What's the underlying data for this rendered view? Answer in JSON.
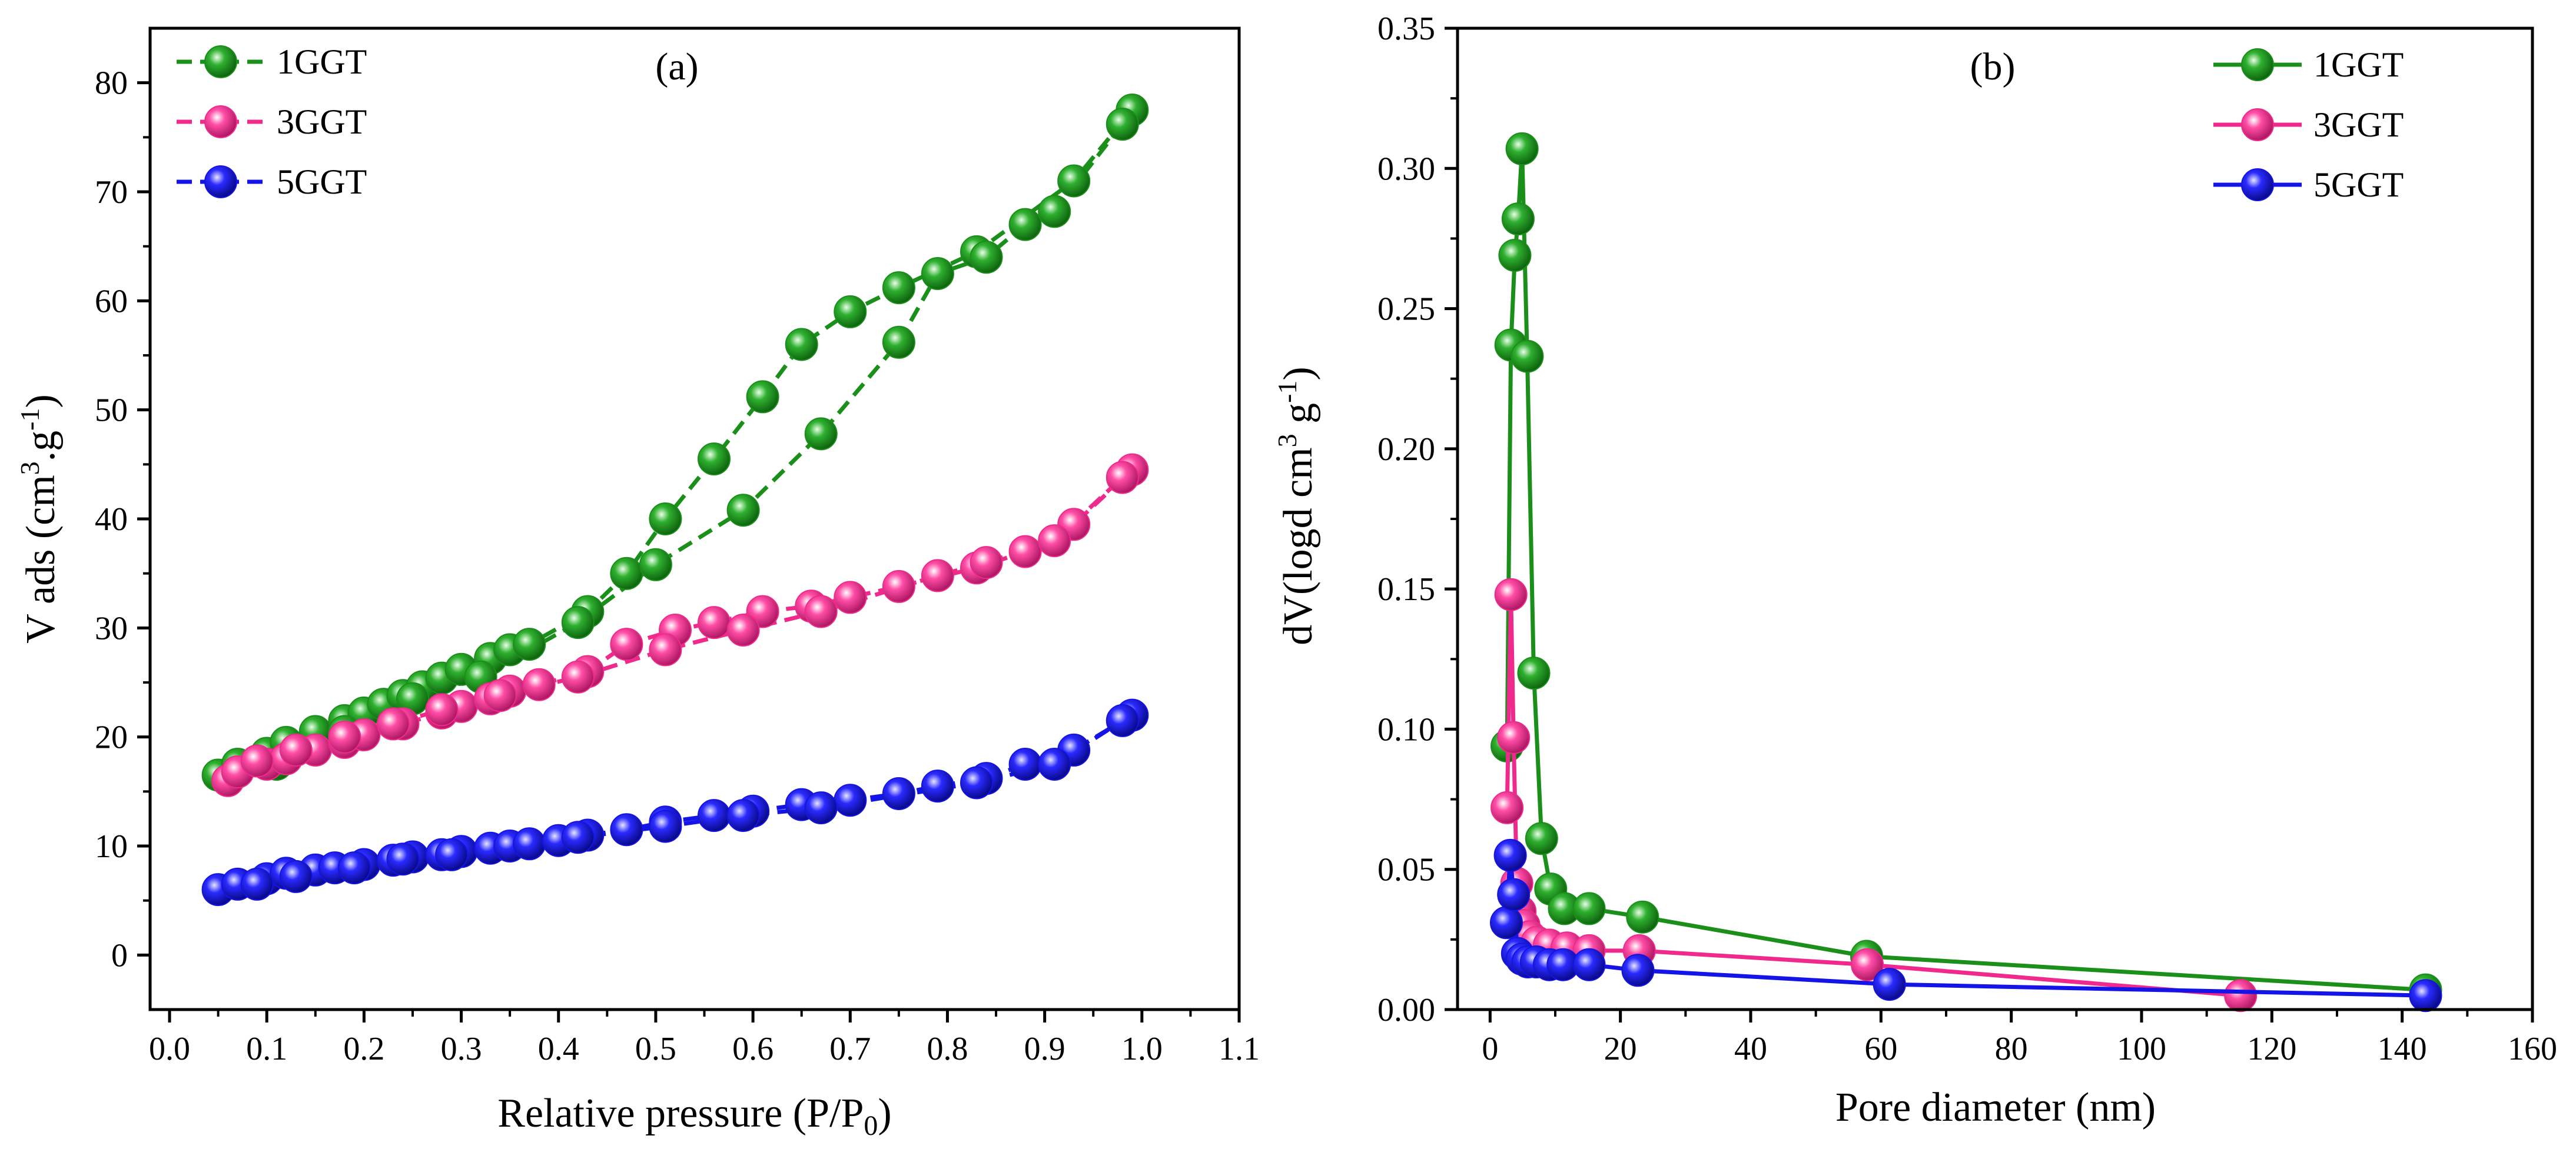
{
  "colors": {
    "1GGT": "#1a8f1a",
    "3GGT": "#ef2a8c",
    "5GGT": "#1414e6"
  },
  "chart_data": [
    {
      "type": "line",
      "panel": "(a)",
      "xlabel": {
        "main": "Relative pressure (P/P",
        "sub": "0",
        "close": ")"
      },
      "ylabel": {
        "pre": "V ads (cm",
        "sup1": "3",
        "mid": ".g",
        "sup2": "-1",
        "post": ")"
      },
      "xlim": [
        -0.02,
        1.1
      ],
      "ylim": [
        -5,
        85
      ],
      "xticks": [
        0.0,
        0.1,
        0.2,
        0.3,
        0.4,
        0.5,
        0.6,
        0.7,
        0.8,
        0.9,
        1.0,
        1.1
      ],
      "xtick_labels": [
        "0.0",
        "0.1",
        "0.2",
        "0.3",
        "0.4",
        "0.5",
        "0.6",
        "0.7",
        "0.8",
        "0.9",
        "1.0",
        "1.1"
      ],
      "yticks": [
        0,
        10,
        20,
        30,
        40,
        50,
        60,
        70,
        80
      ],
      "ytick_labels": [
        "0",
        "10",
        "20",
        "30",
        "40",
        "50",
        "60",
        "70",
        "80"
      ],
      "legend": "top-left",
      "line_style": "dashed",
      "series": [
        {
          "name": "1GGT",
          "x": [
            0.05,
            0.07,
            0.1,
            0.12,
            0.15,
            0.18,
            0.2,
            0.22,
            0.24,
            0.26,
            0.28,
            0.3,
            0.33,
            0.35,
            0.37,
            0.43,
            0.47,
            0.51,
            0.56,
            0.61,
            0.65,
            0.7,
            0.75,
            0.83,
            0.93,
            0.99,
            0.98,
            0.91,
            0.88,
            0.84,
            0.79,
            0.75,
            0.67,
            0.59,
            0.5,
            0.42,
            0.32,
            0.25,
            0.18,
            0.11
          ],
          "y": [
            16.5,
            17.5,
            18.5,
            19.5,
            20.5,
            21.5,
            22.2,
            23,
            23.8,
            24.6,
            25.4,
            26.2,
            27.2,
            28,
            28.5,
            31.5,
            35,
            40,
            45.5,
            51.2,
            56,
            59,
            61.2,
            64.5,
            71,
            77.5,
            76.2,
            68.2,
            67,
            64,
            62.5,
            56.2,
            47.8,
            40.8,
            35.8,
            30.5,
            25.5,
            23.5,
            20.5,
            17.5
          ]
        },
        {
          "name": "3GGT",
          "x": [
            0.06,
            0.07,
            0.1,
            0.12,
            0.15,
            0.18,
            0.2,
            0.24,
            0.28,
            0.3,
            0.33,
            0.35,
            0.38,
            0.43,
            0.47,
            0.52,
            0.56,
            0.61,
            0.66,
            0.7,
            0.75,
            0.83,
            0.88,
            0.93,
            0.99,
            0.98,
            0.91,
            0.84,
            0.79,
            0.67,
            0.59,
            0.51,
            0.42,
            0.34,
            0.28,
            0.23,
            0.18,
            0.13,
            0.09
          ],
          "y": [
            16,
            16.8,
            17.5,
            18,
            18.8,
            19.5,
            20.2,
            21.2,
            22.2,
            22.8,
            23.5,
            24.2,
            24.8,
            26,
            28.5,
            29.8,
            30.5,
            31.5,
            32,
            32.8,
            33.8,
            35.5,
            37,
            39.5,
            44.5,
            43.8,
            38,
            36,
            34.8,
            31.5,
            29.8,
            28,
            25.5,
            23.8,
            22.5,
            21.2,
            20,
            18.8,
            17.8
          ]
        },
        {
          "name": "5GGT",
          "x": [
            0.05,
            0.07,
            0.1,
            0.12,
            0.15,
            0.17,
            0.2,
            0.23,
            0.25,
            0.28,
            0.3,
            0.33,
            0.35,
            0.37,
            0.4,
            0.43,
            0.47,
            0.51,
            0.56,
            0.6,
            0.65,
            0.7,
            0.75,
            0.79,
            0.84,
            0.88,
            0.93,
            0.99,
            0.98,
            0.91,
            0.83,
            0.67,
            0.59,
            0.51,
            0.42,
            0.29,
            0.24,
            0.19,
            0.13,
            0.09
          ],
          "y": [
            6,
            6.5,
            7,
            7.5,
            7.8,
            8,
            8.3,
            8.7,
            9,
            9.2,
            9.5,
            9.8,
            10,
            10.2,
            10.5,
            11,
            11.5,
            12.2,
            12.8,
            13.2,
            13.8,
            14.2,
            14.8,
            15.5,
            16.2,
            17.5,
            18.8,
            22,
            21.5,
            17.5,
            15.8,
            13.5,
            12.8,
            11.8,
            10.8,
            9.2,
            8.8,
            8,
            7.2,
            6.5
          ]
        }
      ]
    },
    {
      "type": "line",
      "panel": "(b)",
      "xlabel": "Pore diameter (nm)",
      "ylabel": {
        "pre": "dV(logd cm",
        "sup1": "3",
        "mid": " g",
        "sup2": "-1",
        "post": ")"
      },
      "xlim": [
        -5,
        160
      ],
      "ylim": [
        0,
        0.35
      ],
      "xticks": [
        0,
        20,
        40,
        60,
        80,
        100,
        120,
        140,
        160
      ],
      "xtick_labels": [
        "0",
        "20",
        "40",
        "60",
        "80",
        "100",
        "120",
        "140",
        "160"
      ],
      "yticks": [
        0.0,
        0.05,
        0.1,
        0.15,
        0.2,
        0.25,
        0.3,
        0.35
      ],
      "ytick_labels": [
        "0.00",
        "0.05",
        "0.10",
        "0.15",
        "0.20",
        "0.25",
        "0.30",
        "0.35"
      ],
      "legend": "top-right",
      "line_style": "solid",
      "series": [
        {
          "name": "1GGT",
          "x": [
            2.6,
            3.2,
            3.8,
            4.3,
            4.9,
            5.7,
            6.7,
            7.9,
            9.3,
            11.4,
            15.2,
            23.4,
            57.8,
            143.6
          ],
          "y": [
            0.094,
            0.237,
            0.269,
            0.282,
            0.307,
            0.233,
            0.12,
            0.061,
            0.043,
            0.036,
            0.036,
            0.033,
            0.019,
            0.007
          ]
        },
        {
          "name": "3GGT",
          "x": [
            2.6,
            3.2,
            3.6,
            4.1,
            4.6,
            5.2,
            6.1,
            7.2,
            9.1,
            11.8,
            15.2,
            22.9,
            57.9,
            115.2
          ],
          "y": [
            0.072,
            0.148,
            0.097,
            0.045,
            0.035,
            0.03,
            0.026,
            0.024,
            0.023,
            0.022,
            0.021,
            0.021,
            0.016,
            0.005
          ]
        },
        {
          "name": "5GGT",
          "x": [
            2.5,
            3.1,
            3.6,
            4.2,
            4.9,
            5.8,
            7.1,
            9.1,
            11.2,
            15.2,
            22.7,
            61.3,
            143.6
          ],
          "y": [
            0.031,
            0.055,
            0.041,
            0.02,
            0.018,
            0.017,
            0.017,
            0.016,
            0.016,
            0.016,
            0.014,
            0.009,
            0.005
          ]
        }
      ]
    }
  ]
}
